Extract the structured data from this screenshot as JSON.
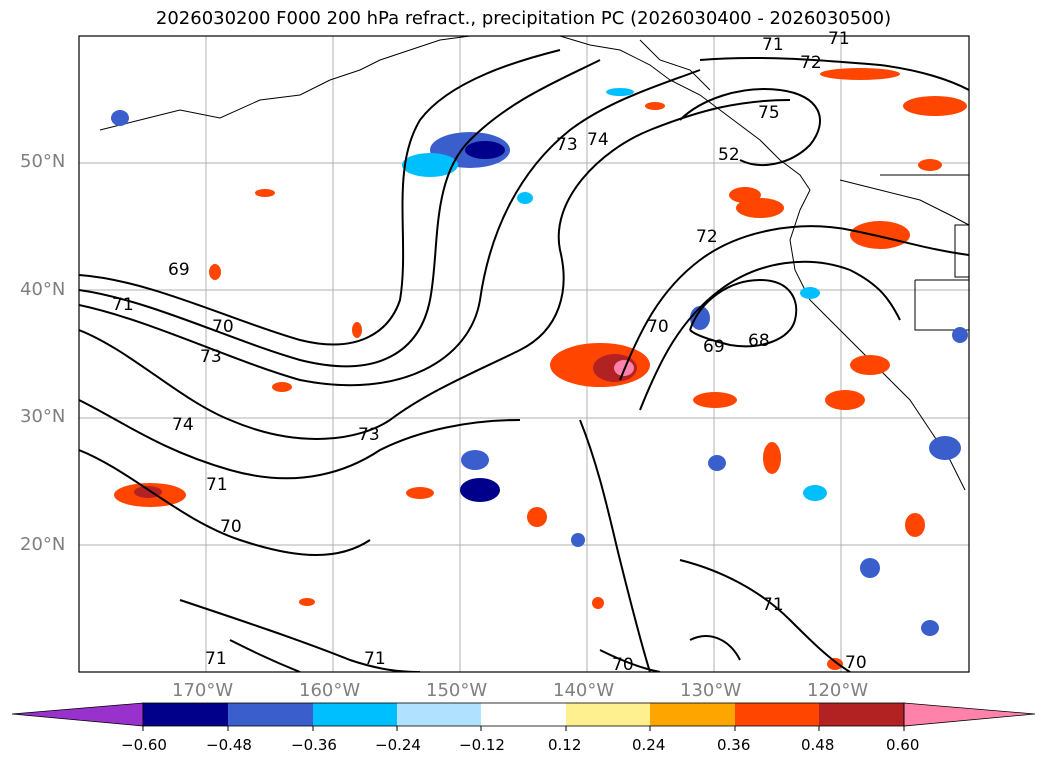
{
  "title": "2026030200 F000 200 hPa refract., precipitation PC (2026030400 - 2026030500)",
  "lat_labels": [
    "50°N",
    "40°N",
    "30°N",
    "20°N"
  ],
  "lon_labels": [
    "170°W",
    "160°W",
    "150°W",
    "140°W",
    "130°W",
    "120°W"
  ],
  "contour_labels": [
    "71",
    "71",
    "72",
    "75",
    "73",
    "74",
    "52",
    "72",
    "69",
    "71",
    "70",
    "73",
    "74",
    "70",
    "69",
    "68",
    "73",
    "71",
    "70",
    "71",
    "71",
    "70",
    "71",
    "70"
  ],
  "colorbar": {
    "ticks": [
      "−0.60",
      "−0.48",
      "−0.36",
      "−0.24",
      "−0.12",
      "0.12",
      "0.24",
      "0.36",
      "0.48",
      "0.60"
    ],
    "colors": [
      "#9932cc",
      "#00008b",
      "#3a5fcd",
      "#00bfff",
      "#b0e2ff",
      "#ffffff",
      "#fff08f",
      "#ffa500",
      "#ff4500",
      "#b22222",
      "#ff82ab"
    ]
  }
}
